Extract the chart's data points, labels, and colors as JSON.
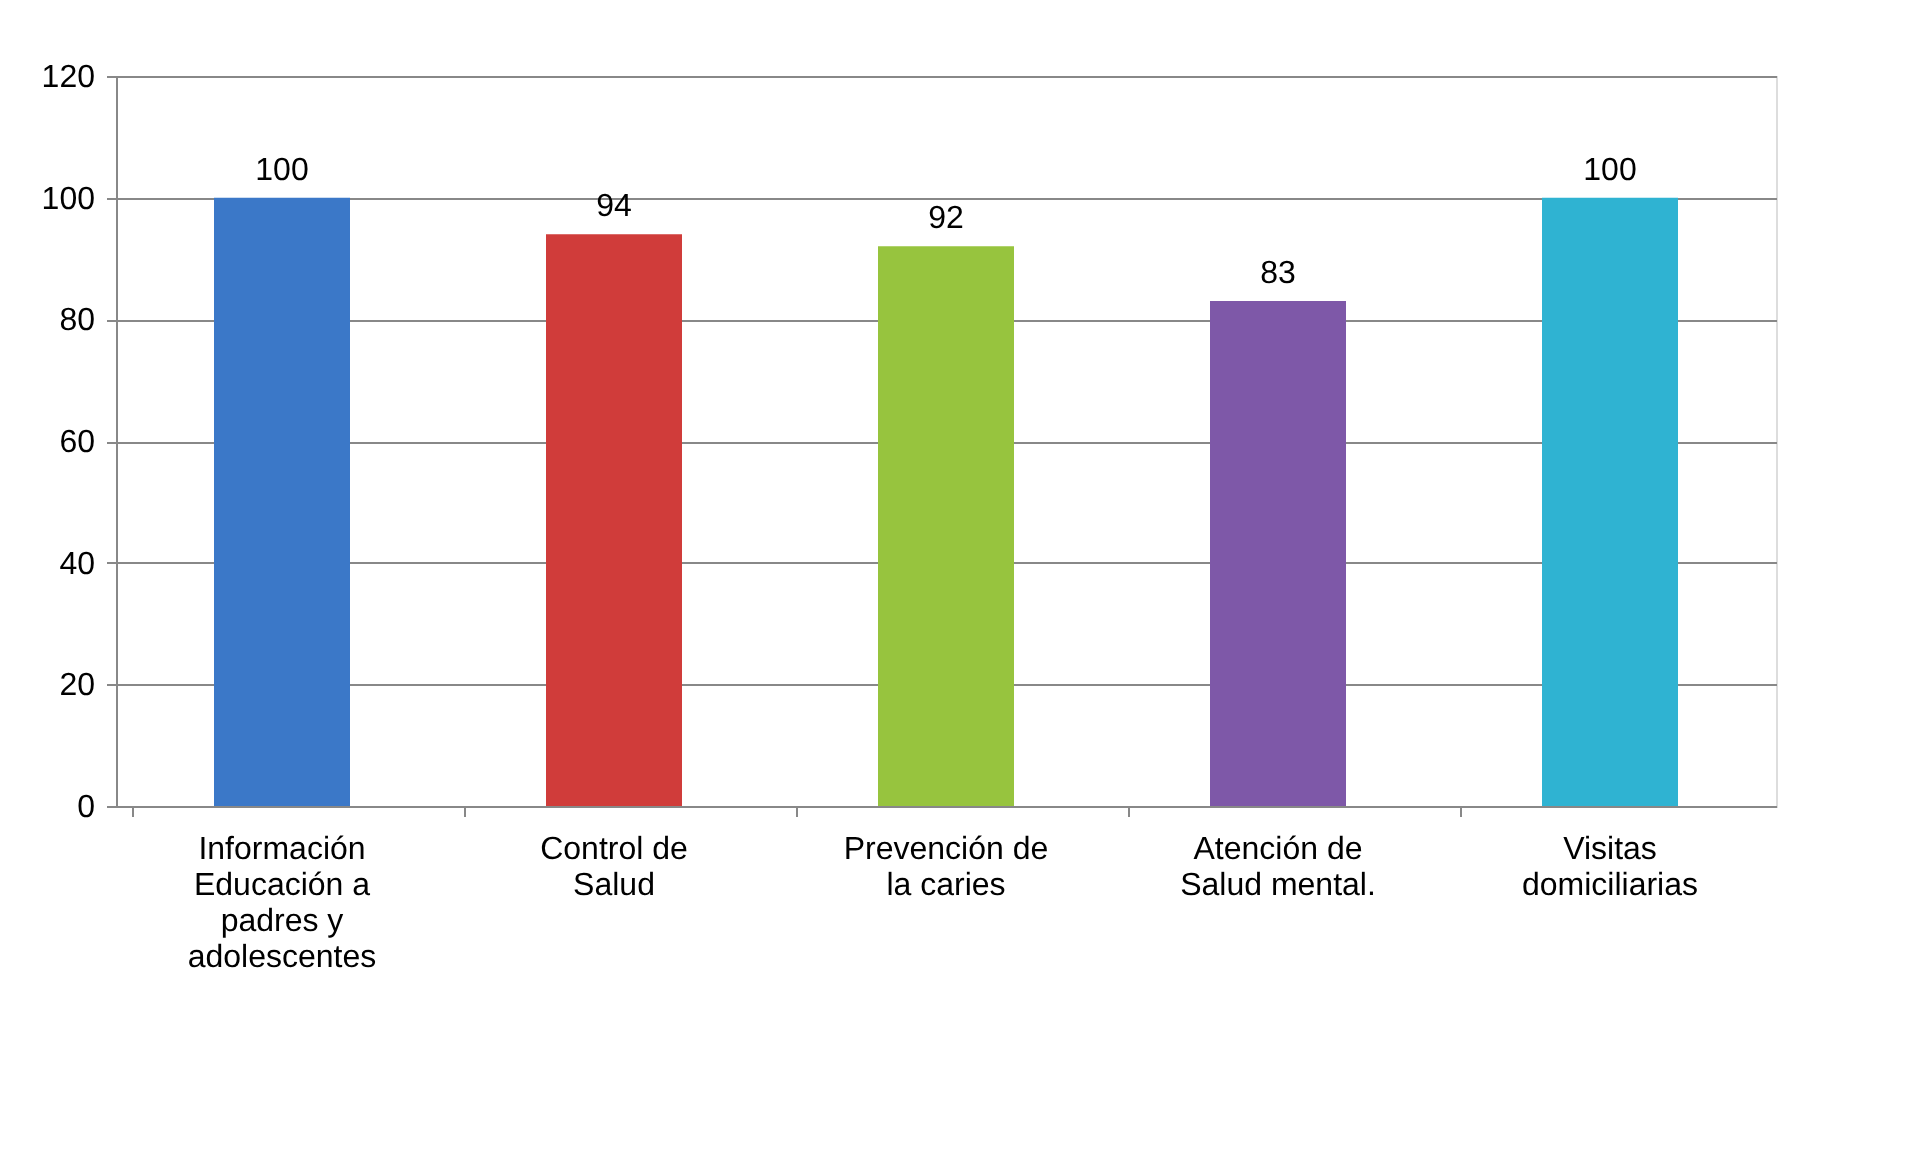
{
  "chart_data": {
    "type": "bar",
    "categories": [
      "Información\nEducación a\npadres y\nadolescentes",
      "Control de\nSalud",
      "Prevención de\nla caries",
      "Atención de\nSalud mental.",
      "Visitas\ndomiciliarias"
    ],
    "values": [
      100,
      94,
      92,
      83,
      100
    ],
    "colors": [
      "#3b78c8",
      "#d03c3a",
      "#97c43e",
      "#7e58a8",
      "#2fb3d2"
    ],
    "ylim": [
      0,
      120
    ],
    "yticks": [
      0,
      20,
      40,
      60,
      80,
      100,
      120
    ],
    "grid": "y",
    "data_labels": true
  }
}
